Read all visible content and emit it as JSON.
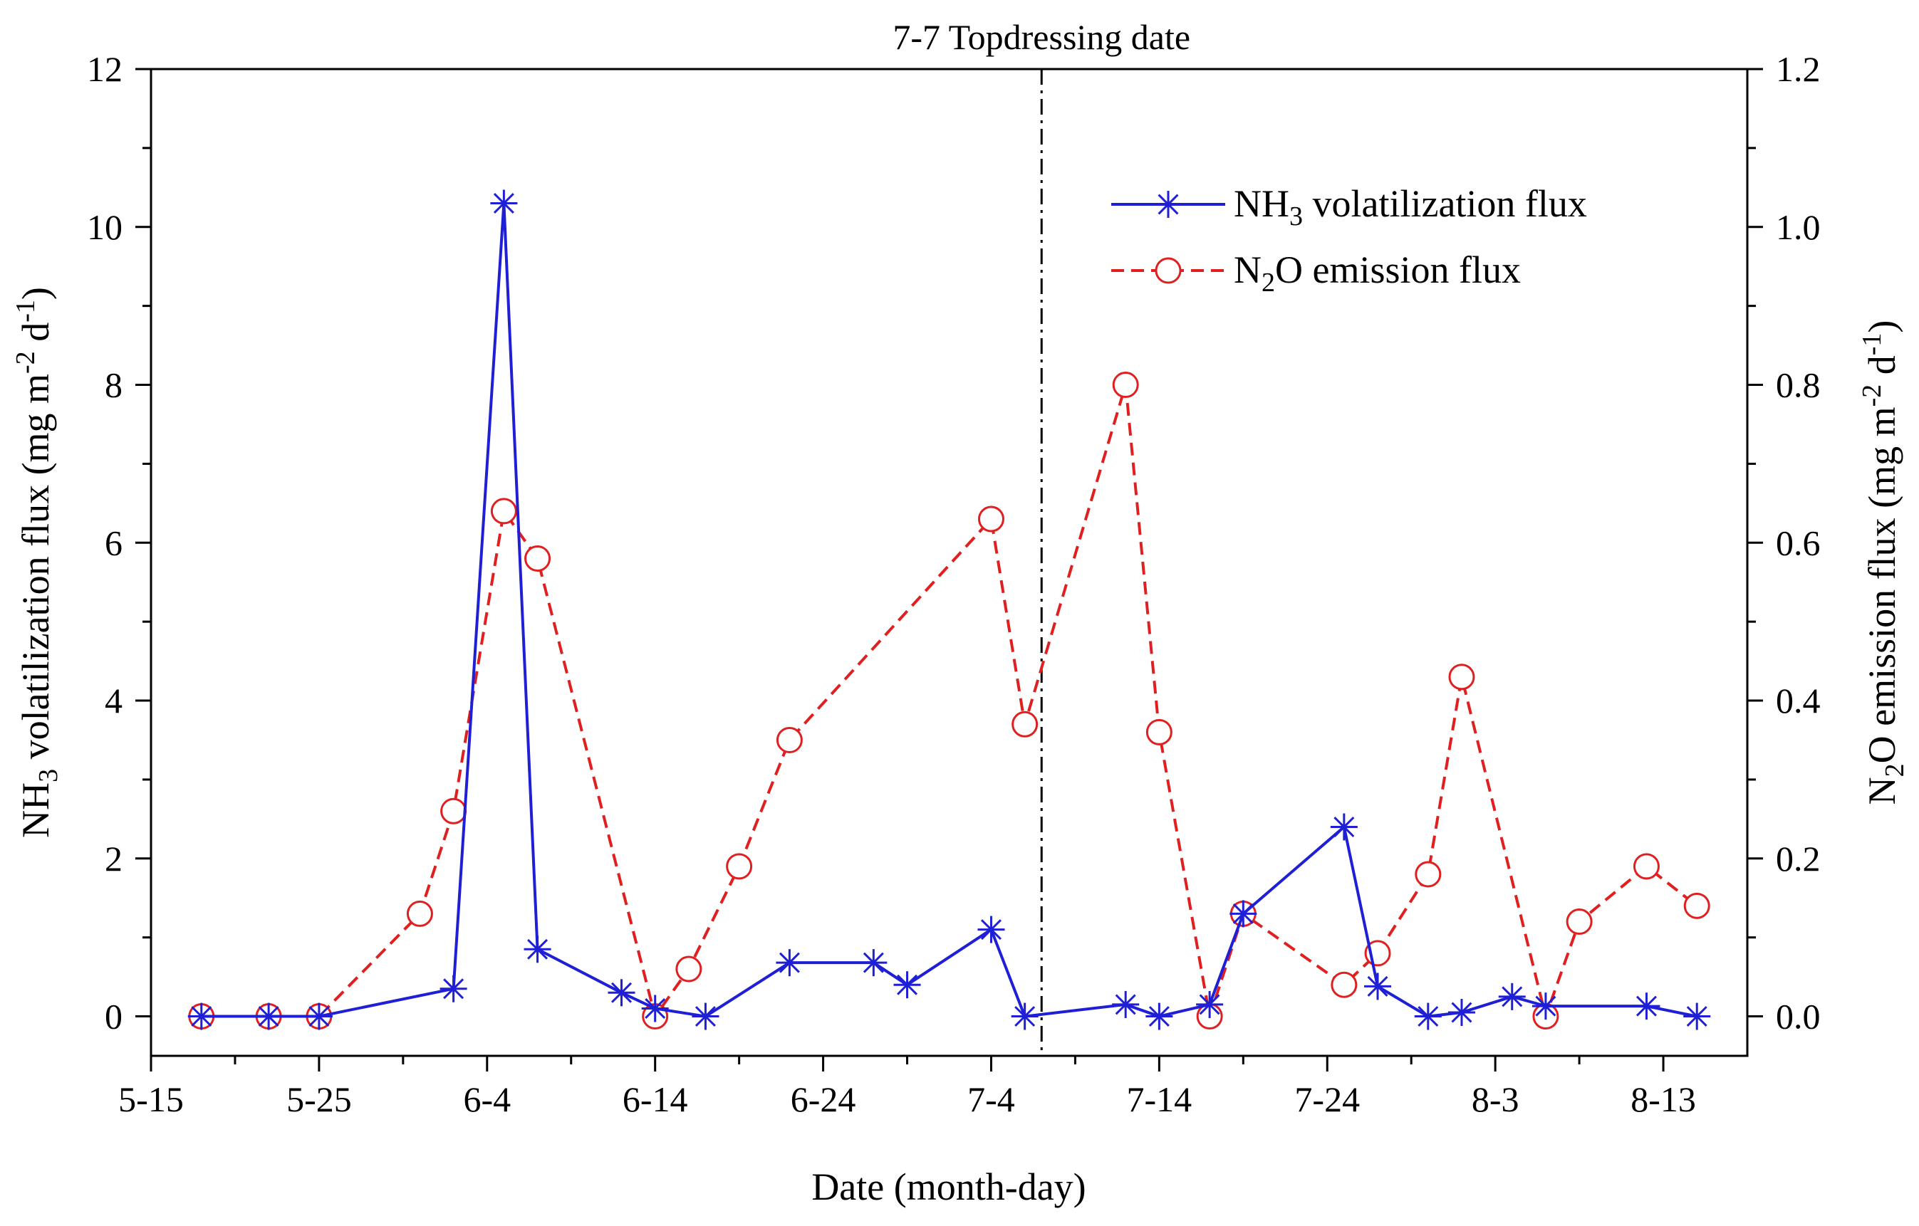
{
  "chart_data": {
    "type": "line",
    "xlabel": "Date (month-day)",
    "ylabel_left": {
      "pre": "NH",
      "sub": "3",
      "mid": " volatilization flux (mg m",
      "sup1": "-2",
      "mid2": " d",
      "sup2": "-1",
      "post": ")"
    },
    "ylabel_right": {
      "pre": "N",
      "sub": "2",
      "mid": "O emission flux (mg m",
      "sup1": "-2",
      "mid2": " d",
      "sup2": "-1",
      "post": ")"
    },
    "x_tick_labels": [
      "5-15",
      "5-25",
      "6-4",
      "6-14",
      "6-24",
      "7-4",
      "7-14",
      "7-24",
      "8-3",
      "8-13"
    ],
    "x_tick_days": [
      0,
      10,
      20,
      30,
      40,
      50,
      60,
      70,
      80,
      90
    ],
    "xlim_days": [
      0,
      95
    ],
    "y_left_ticks": [
      "0",
      "2",
      "4",
      "6",
      "8",
      "10",
      "12"
    ],
    "ylim_left": [
      -0.5,
      12
    ],
    "y_right_ticks": [
      "0.0",
      "0.2",
      "0.4",
      "0.6",
      "0.8",
      "1.0",
      "1.2"
    ],
    "ylim_right": [
      -0.05,
      1.2
    ],
    "annotation": {
      "text": "7-7 Topdressing date",
      "day": 53
    },
    "series": [
      {
        "name": "NH3 volatilization flux",
        "legend": {
          "pre": "NH",
          "sub": "3",
          "post": " volatilization flux"
        },
        "axis": "left",
        "color": "#1f1fd6",
        "line_style": "solid",
        "marker": "asterisk",
        "x_days": [
          3,
          7,
          10,
          18,
          21,
          23,
          28,
          30,
          33,
          38,
          43,
          45,
          50,
          52,
          58,
          60,
          63,
          65,
          71,
          73,
          76,
          78,
          81,
          83,
          89,
          92
        ],
        "values": [
          0,
          0,
          0,
          0.35,
          10.3,
          0.85,
          0.3,
          0.1,
          0,
          0.68,
          0.68,
          0.4,
          1.1,
          0,
          0.15,
          0,
          0.15,
          1.3,
          2.4,
          0.38,
          0,
          0.05,
          0.25,
          0.13,
          0.13,
          0
        ]
      },
      {
        "name": "N2O emission flux",
        "legend": {
          "pre": "N",
          "sub": "2",
          "post": "O emission flux"
        },
        "axis": "right",
        "color": "#e02020",
        "line_style": "dashed",
        "marker": "circle",
        "x_days": [
          3,
          7,
          10,
          16,
          18,
          21,
          23,
          30,
          32,
          35,
          38,
          50,
          52,
          58,
          60,
          63,
          65,
          71,
          73,
          76,
          78,
          83,
          85,
          89,
          92
        ],
        "values": [
          0,
          0,
          0,
          0.13,
          0.26,
          0.64,
          0.58,
          0,
          0.06,
          0.19,
          0.35,
          0.63,
          0.37,
          0.8,
          0.36,
          0,
          0.13,
          0.04,
          0.08,
          0.18,
          0.43,
          0,
          0.12,
          0.19,
          0.14
        ]
      }
    ],
    "legend_position": "top-right"
  }
}
